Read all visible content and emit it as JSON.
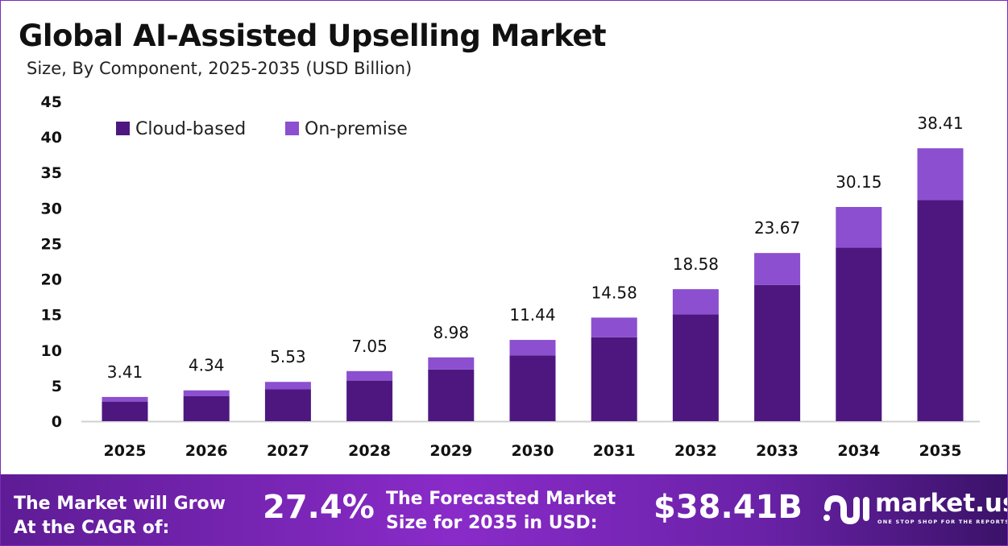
{
  "title": "Global AI-Assisted Upselling Market",
  "subtitle": "Size, By Component, 2025-2035 (USD Billion)",
  "chart_data": {
    "type": "bar",
    "stacked": true,
    "title": "Global AI-Assisted Upselling Market",
    "subtitle": "Size, By Component, 2025-2035 (USD Billion)",
    "categories": [
      "2025",
      "2026",
      "2027",
      "2028",
      "2029",
      "2030",
      "2031",
      "2032",
      "2033",
      "2034",
      "2035"
    ],
    "series": [
      {
        "name": "Cloud-based",
        "color": "#4e1780",
        "values": [
          2.76,
          3.52,
          4.48,
          5.71,
          7.27,
          9.27,
          11.81,
          15.05,
          19.17,
          24.42,
          31.11
        ]
      },
      {
        "name": "On-premise",
        "color": "#8b4fcf",
        "values": [
          0.65,
          0.82,
          1.05,
          1.34,
          1.71,
          2.17,
          2.77,
          3.53,
          4.5,
          5.73,
          7.3
        ]
      }
    ],
    "totals": [
      "3.41",
      "4.34",
      "5.53",
      "7.05",
      "8.98",
      "11.44",
      "14.58",
      "18.58",
      "23.67",
      "30.15",
      "38.41"
    ],
    "ylim": [
      0,
      45
    ],
    "yticks": [
      "0",
      "5",
      "10",
      "15",
      "20",
      "25",
      "30",
      "35",
      "40",
      "45"
    ],
    "grid": false,
    "legend": "top-left"
  },
  "footer": {
    "cagr_label_1": "The Market will Grow",
    "cagr_label_2": "At the CAGR of:",
    "cagr_value": "27.4%",
    "forecast_label_1": "The Forecasted Market",
    "forecast_label_2": "Size for 2035 in USD:",
    "forecast_value": "$38.41B",
    "brand": "market.us",
    "tagline": "ONE STOP SHOP FOR THE REPORTS"
  }
}
